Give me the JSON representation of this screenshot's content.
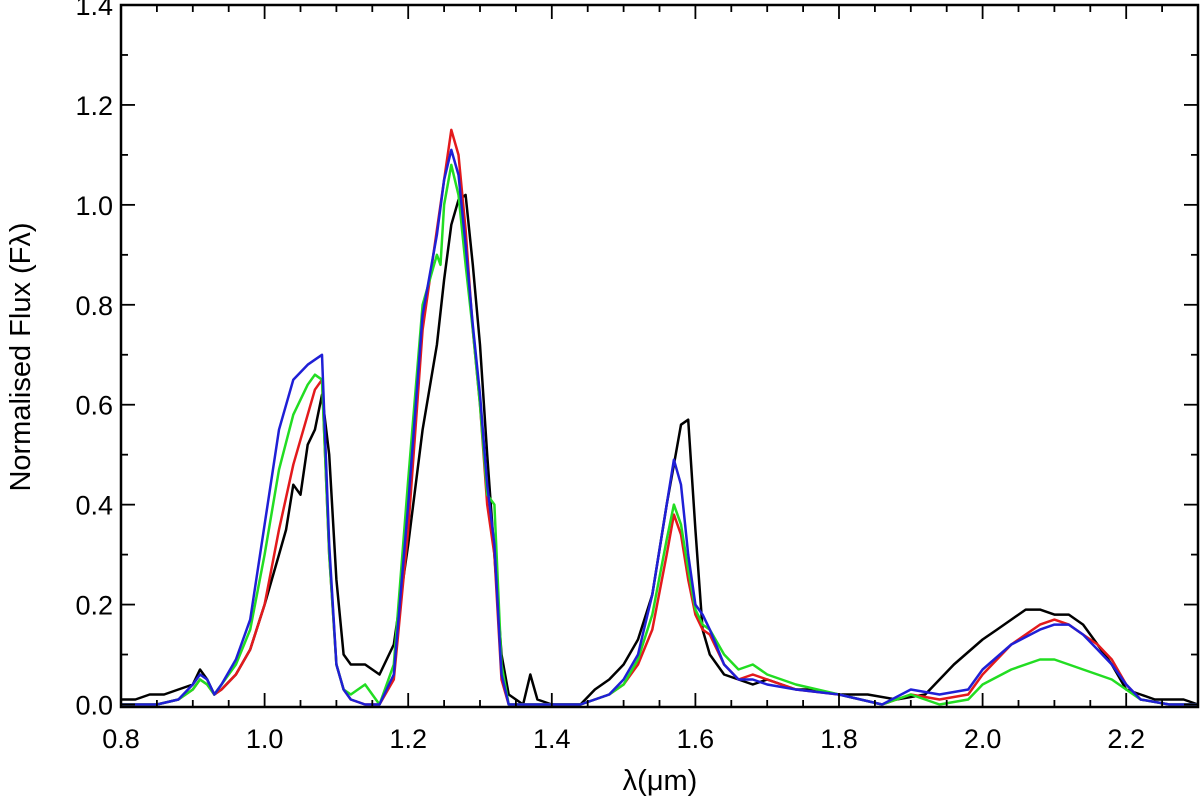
{
  "chart_data": {
    "type": "line",
    "title": "",
    "xlabel": "λ(μm)",
    "ylabel": "Normalised Flux (Fλ)",
    "xlim": [
      0.8,
      2.3
    ],
    "ylim": [
      -0.005,
      1.4
    ],
    "xticks": [
      0.8,
      1.0,
      1.2,
      1.4,
      1.6,
      1.8,
      2.0,
      2.2
    ],
    "xtick_labels": [
      "0.8",
      "1.0",
      "1.2",
      "1.4",
      "1.6",
      "1.8",
      "2.0",
      "2.2"
    ],
    "yticks": [
      0.0,
      0.2,
      0.4,
      0.6,
      0.8,
      1.0,
      1.2,
      1.4
    ],
    "ytick_labels": [
      "0.0",
      "0.2",
      "0.4",
      "0.6",
      "0.8",
      "1.0",
      "1.2",
      "1.4"
    ],
    "grid": false,
    "legend": false,
    "series": [
      {
        "color": "#000000",
        "x": [
          0.8,
          0.82,
          0.84,
          0.86,
          0.88,
          0.9,
          0.91,
          0.92,
          0.93,
          0.94,
          0.96,
          0.98,
          1.0,
          1.02,
          1.03,
          1.04,
          1.05,
          1.06,
          1.07,
          1.08,
          1.09,
          1.1,
          1.11,
          1.12,
          1.14,
          1.16,
          1.18,
          1.2,
          1.22,
          1.24,
          1.25,
          1.26,
          1.27,
          1.28,
          1.29,
          1.3,
          1.31,
          1.32,
          1.33,
          1.34,
          1.36,
          1.37,
          1.38,
          1.4,
          1.42,
          1.44,
          1.46,
          1.48,
          1.5,
          1.52,
          1.54,
          1.56,
          1.57,
          1.58,
          1.59,
          1.6,
          1.61,
          1.62,
          1.64,
          1.66,
          1.68,
          1.7,
          1.72,
          1.74,
          1.76,
          1.8,
          1.84,
          1.88,
          1.92,
          1.96,
          2.0,
          2.02,
          2.04,
          2.06,
          2.08,
          2.1,
          2.12,
          2.14,
          2.16,
          2.18,
          2.2,
          2.22,
          2.24,
          2.26,
          2.28,
          2.3
        ],
        "y": [
          0.01,
          0.01,
          0.02,
          0.02,
          0.03,
          0.04,
          0.07,
          0.05,
          0.02,
          0.03,
          0.06,
          0.11,
          0.2,
          0.3,
          0.35,
          0.44,
          0.42,
          0.52,
          0.55,
          0.62,
          0.5,
          0.25,
          0.1,
          0.08,
          0.08,
          0.06,
          0.12,
          0.32,
          0.55,
          0.72,
          0.85,
          0.96,
          1.01,
          1.02,
          0.88,
          0.72,
          0.5,
          0.3,
          0.1,
          0.02,
          0.0,
          0.06,
          0.01,
          0.0,
          0.0,
          0.0,
          0.03,
          0.05,
          0.08,
          0.13,
          0.22,
          0.4,
          0.48,
          0.56,
          0.57,
          0.35,
          0.15,
          0.1,
          0.06,
          0.05,
          0.04,
          0.05,
          0.04,
          0.03,
          0.03,
          0.02,
          0.02,
          0.01,
          0.02,
          0.08,
          0.13,
          0.15,
          0.17,
          0.19,
          0.19,
          0.18,
          0.18,
          0.16,
          0.12,
          0.08,
          0.03,
          0.02,
          0.01,
          0.01,
          0.01,
          0.0
        ]
      },
      {
        "color": "#e31a1c",
        "x": [
          0.8,
          0.85,
          0.88,
          0.9,
          0.91,
          0.92,
          0.93,
          0.94,
          0.96,
          0.98,
          1.0,
          1.02,
          1.04,
          1.06,
          1.07,
          1.08,
          1.09,
          1.1,
          1.11,
          1.12,
          1.14,
          1.16,
          1.18,
          1.2,
          1.22,
          1.24,
          1.25,
          1.26,
          1.27,
          1.28,
          1.29,
          1.3,
          1.31,
          1.32,
          1.33,
          1.34,
          1.36,
          1.4,
          1.44,
          1.48,
          1.5,
          1.52,
          1.54,
          1.56,
          1.57,
          1.58,
          1.59,
          1.6,
          1.61,
          1.62,
          1.64,
          1.66,
          1.68,
          1.7,
          1.74,
          1.8,
          1.86,
          1.9,
          1.94,
          1.98,
          2.0,
          2.04,
          2.08,
          2.1,
          2.12,
          2.14,
          2.16,
          2.18,
          2.2,
          2.22,
          2.26,
          2.3
        ],
        "y": [
          0.0,
          0.0,
          0.01,
          0.03,
          0.05,
          0.04,
          0.02,
          0.03,
          0.06,
          0.11,
          0.2,
          0.35,
          0.48,
          0.58,
          0.63,
          0.65,
          0.3,
          0.08,
          0.03,
          0.01,
          0.0,
          0.0,
          0.05,
          0.35,
          0.75,
          0.95,
          1.05,
          1.15,
          1.1,
          0.95,
          0.75,
          0.6,
          0.4,
          0.3,
          0.05,
          0.0,
          0.0,
          0.0,
          0.0,
          0.02,
          0.04,
          0.08,
          0.15,
          0.3,
          0.38,
          0.34,
          0.25,
          0.18,
          0.15,
          0.14,
          0.08,
          0.05,
          0.06,
          0.05,
          0.03,
          0.02,
          0.0,
          0.02,
          0.01,
          0.02,
          0.06,
          0.12,
          0.16,
          0.17,
          0.16,
          0.14,
          0.12,
          0.09,
          0.04,
          0.01,
          0.0,
          0.0
        ]
      },
      {
        "color": "#22dd22",
        "x": [
          0.8,
          0.85,
          0.88,
          0.9,
          0.91,
          0.92,
          0.93,
          0.94,
          0.96,
          0.98,
          1.0,
          1.02,
          1.04,
          1.06,
          1.07,
          1.08,
          1.09,
          1.1,
          1.11,
          1.12,
          1.14,
          1.16,
          1.18,
          1.2,
          1.22,
          1.24,
          1.245,
          1.25,
          1.26,
          1.27,
          1.28,
          1.29,
          1.3,
          1.31,
          1.32,
          1.33,
          1.34,
          1.36,
          1.4,
          1.44,
          1.48,
          1.5,
          1.52,
          1.54,
          1.56,
          1.57,
          1.58,
          1.59,
          1.6,
          1.61,
          1.62,
          1.64,
          1.66,
          1.68,
          1.7,
          1.74,
          1.8,
          1.86,
          1.9,
          1.94,
          1.98,
          2.0,
          2.04,
          2.08,
          2.1,
          2.12,
          2.14,
          2.16,
          2.18,
          2.2,
          2.22,
          2.26,
          2.3
        ],
        "y": [
          0.0,
          0.0,
          0.01,
          0.03,
          0.05,
          0.04,
          0.02,
          0.04,
          0.08,
          0.15,
          0.3,
          0.47,
          0.58,
          0.64,
          0.66,
          0.65,
          0.3,
          0.08,
          0.03,
          0.02,
          0.04,
          0.0,
          0.08,
          0.45,
          0.8,
          0.9,
          0.88,
          1.0,
          1.08,
          1.02,
          0.88,
          0.75,
          0.6,
          0.42,
          0.4,
          0.08,
          0.0,
          0.0,
          0.0,
          0.0,
          0.02,
          0.04,
          0.09,
          0.18,
          0.33,
          0.4,
          0.36,
          0.27,
          0.19,
          0.16,
          0.15,
          0.1,
          0.07,
          0.08,
          0.06,
          0.04,
          0.02,
          0.0,
          0.02,
          0.0,
          0.01,
          0.04,
          0.07,
          0.09,
          0.09,
          0.08,
          0.07,
          0.06,
          0.05,
          0.03,
          0.01,
          0.0,
          0.0
        ]
      },
      {
        "color": "#1f1fd6",
        "x": [
          0.8,
          0.85,
          0.88,
          0.9,
          0.91,
          0.92,
          0.93,
          0.94,
          0.96,
          0.98,
          1.0,
          1.02,
          1.04,
          1.06,
          1.07,
          1.08,
          1.09,
          1.1,
          1.11,
          1.12,
          1.14,
          1.16,
          1.18,
          1.2,
          1.22,
          1.24,
          1.25,
          1.26,
          1.27,
          1.28,
          1.29,
          1.3,
          1.31,
          1.32,
          1.33,
          1.34,
          1.36,
          1.4,
          1.44,
          1.48,
          1.5,
          1.52,
          1.54,
          1.56,
          1.57,
          1.58,
          1.59,
          1.6,
          1.61,
          1.62,
          1.64,
          1.66,
          1.68,
          1.7,
          1.74,
          1.8,
          1.86,
          1.9,
          1.94,
          1.98,
          2.0,
          2.04,
          2.08,
          2.1,
          2.12,
          2.14,
          2.16,
          2.18,
          2.2,
          2.22,
          2.26,
          2.3
        ],
        "y": [
          0.0,
          0.0,
          0.01,
          0.04,
          0.06,
          0.05,
          0.02,
          0.04,
          0.09,
          0.17,
          0.36,
          0.55,
          0.65,
          0.68,
          0.69,
          0.7,
          0.32,
          0.08,
          0.03,
          0.01,
          0.0,
          0.0,
          0.06,
          0.4,
          0.78,
          0.94,
          1.05,
          1.11,
          1.06,
          0.92,
          0.76,
          0.62,
          0.44,
          0.32,
          0.06,
          0.0,
          0.0,
          0.0,
          0.0,
          0.02,
          0.05,
          0.1,
          0.22,
          0.4,
          0.49,
          0.44,
          0.3,
          0.2,
          0.18,
          0.15,
          0.08,
          0.05,
          0.05,
          0.04,
          0.03,
          0.02,
          0.0,
          0.03,
          0.02,
          0.03,
          0.07,
          0.12,
          0.15,
          0.16,
          0.16,
          0.14,
          0.11,
          0.08,
          0.04,
          0.01,
          0.0,
          0.0
        ]
      }
    ]
  }
}
